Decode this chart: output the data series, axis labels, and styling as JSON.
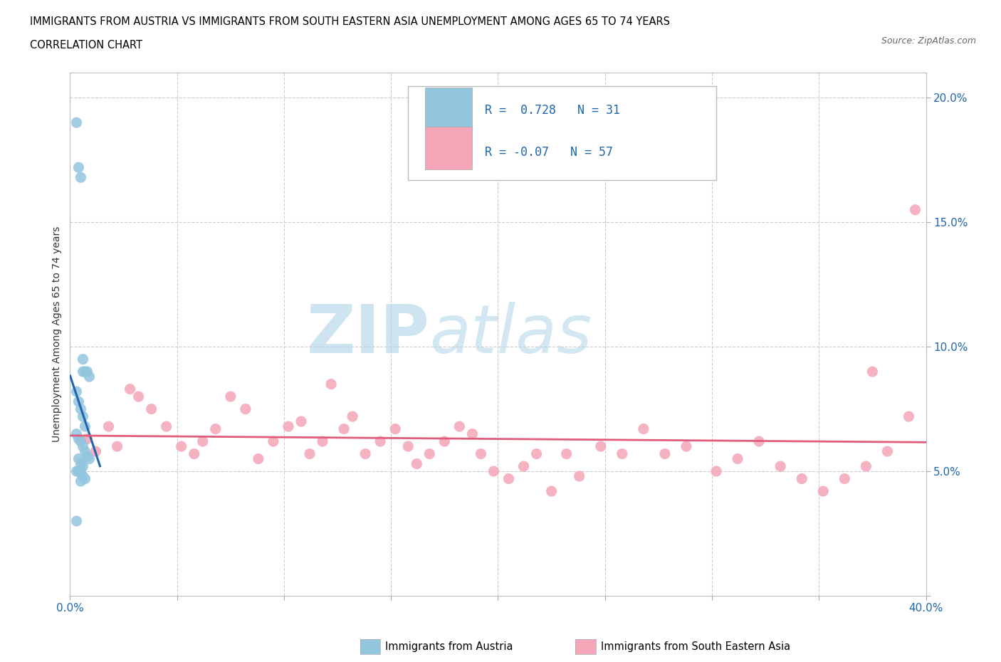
{
  "title_line1": "IMMIGRANTS FROM AUSTRIA VS IMMIGRANTS FROM SOUTH EASTERN ASIA UNEMPLOYMENT AMONG AGES 65 TO 74 YEARS",
  "title_line2": "CORRELATION CHART",
  "source_text": "Source: ZipAtlas.com",
  "ylabel": "Unemployment Among Ages 65 to 74 years",
  "xlim": [
    0.0,
    0.4
  ],
  "ylim": [
    0.0,
    0.21
  ],
  "austria_color": "#92c5de",
  "austria_line_color": "#2166ac",
  "sea_color": "#f4a6b8",
  "sea_line_color": "#e05c7a",
  "r_austria": 0.728,
  "n_austria": 31,
  "r_sea": -0.07,
  "n_sea": 57,
  "austria_x": [
    0.003,
    0.004,
    0.005,
    0.006,
    0.006,
    0.007,
    0.008,
    0.009,
    0.003,
    0.004,
    0.005,
    0.006,
    0.007,
    0.003,
    0.004,
    0.005,
    0.006,
    0.007,
    0.008,
    0.009,
    0.004,
    0.005,
    0.006,
    0.003,
    0.004,
    0.006,
    0.007,
    0.005,
    0.004,
    0.005,
    0.003
  ],
  "austria_y": [
    0.19,
    0.172,
    0.168,
    0.095,
    0.09,
    0.09,
    0.09,
    0.088,
    0.082,
    0.078,
    0.075,
    0.072,
    0.068,
    0.065,
    0.063,
    0.062,
    0.06,
    0.058,
    0.056,
    0.055,
    0.055,
    0.053,
    0.052,
    0.05,
    0.05,
    0.048,
    0.047,
    0.046,
    0.05,
    0.05,
    0.03
  ],
  "sea_x": [
    0.008,
    0.012,
    0.018,
    0.022,
    0.028,
    0.032,
    0.038,
    0.045,
    0.052,
    0.058,
    0.062,
    0.068,
    0.075,
    0.082,
    0.088,
    0.095,
    0.102,
    0.108,
    0.112,
    0.118,
    0.122,
    0.128,
    0.132,
    0.138,
    0.145,
    0.152,
    0.158,
    0.162,
    0.168,
    0.175,
    0.182,
    0.188,
    0.192,
    0.198,
    0.205,
    0.212,
    0.218,
    0.225,
    0.232,
    0.238,
    0.248,
    0.258,
    0.268,
    0.278,
    0.288,
    0.302,
    0.312,
    0.322,
    0.332,
    0.342,
    0.352,
    0.362,
    0.372,
    0.382,
    0.392,
    0.395,
    0.375
  ],
  "sea_y": [
    0.063,
    0.058,
    0.068,
    0.06,
    0.083,
    0.08,
    0.075,
    0.068,
    0.06,
    0.057,
    0.062,
    0.067,
    0.08,
    0.075,
    0.055,
    0.062,
    0.068,
    0.07,
    0.057,
    0.062,
    0.085,
    0.067,
    0.072,
    0.057,
    0.062,
    0.067,
    0.06,
    0.053,
    0.057,
    0.062,
    0.068,
    0.065,
    0.057,
    0.05,
    0.047,
    0.052,
    0.057,
    0.042,
    0.057,
    0.048,
    0.06,
    0.057,
    0.067,
    0.057,
    0.06,
    0.05,
    0.055,
    0.062,
    0.052,
    0.047,
    0.042,
    0.047,
    0.052,
    0.058,
    0.072,
    0.155,
    0.09
  ],
  "watermark_zip": "ZIP",
  "watermark_atlas": "atlas",
  "background_color": "#ffffff",
  "grid_color": "#cccccc"
}
